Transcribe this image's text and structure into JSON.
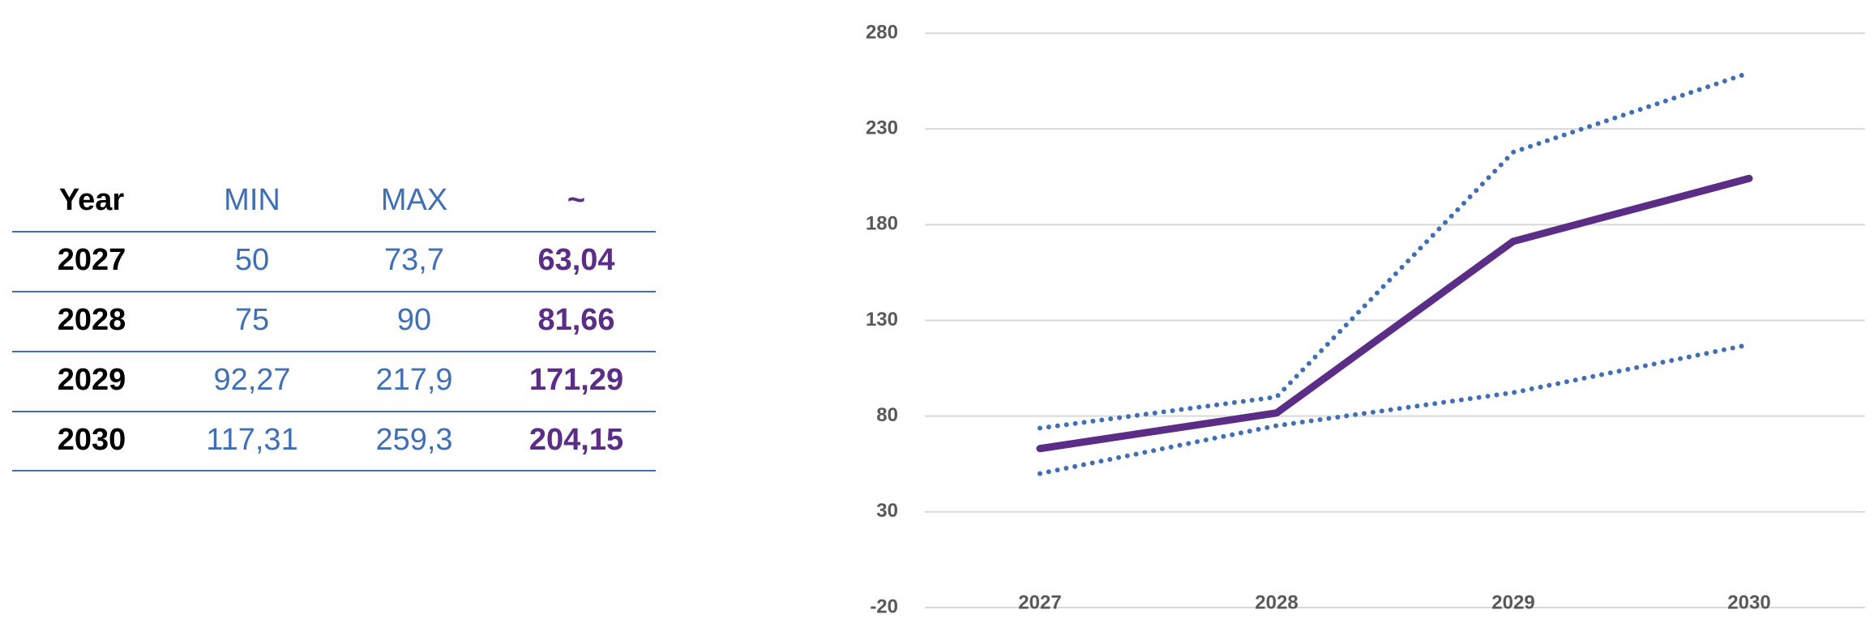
{
  "table": {
    "header": [
      "Year",
      "MIN",
      "MAX",
      "~"
    ],
    "rows": [
      [
        "2027",
        "50",
        "73,7",
        "63,04"
      ],
      [
        "2028",
        "75",
        "90",
        "81,66"
      ],
      [
        "2029",
        "92,27",
        "217,9",
        "171,29"
      ],
      [
        "2030",
        "117,31",
        "259,3",
        "204,15"
      ]
    ]
  },
  "chart_data": {
    "type": "line",
    "categories": [
      "2027",
      "2028",
      "2029",
      "2030"
    ],
    "series": [
      {
        "color": "#3f6fb5",
        "style": "dotted",
        "values": [
          50,
          75,
          92.27,
          117.31
        ]
      },
      {
        "color": "#3f6fb5",
        "style": "dotted",
        "values": [
          73.7,
          90,
          217.9,
          259.3
        ]
      },
      {
        "color": "#5b2d86",
        "style": "solid",
        "values": [
          63.04,
          81.66,
          171.29,
          204.15
        ]
      }
    ],
    "ylim": [
      -20,
      280
    ],
    "yticks": [
      -20,
      30,
      80,
      130,
      180,
      230,
      280
    ],
    "grid": true
  }
}
